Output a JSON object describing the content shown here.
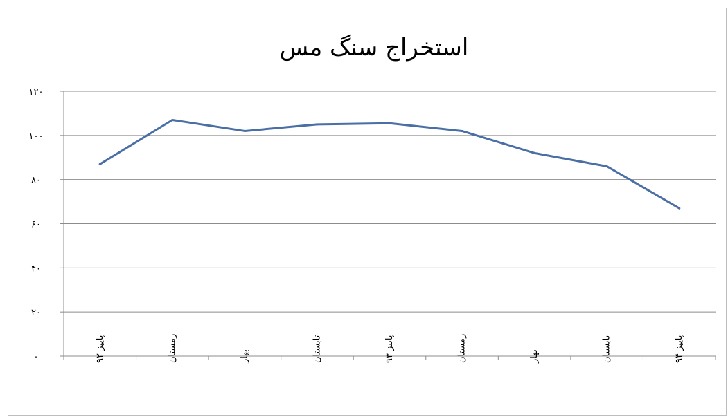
{
  "chart_data": {
    "type": "line",
    "title": "استخراج سنگ مس",
    "categories": [
      "پاییز ۹۲",
      "زمستان",
      "بهار",
      "تابستان",
      "پاییز ۹۳",
      "زمستان",
      "بهار",
      "تابستان",
      "پاییز ۹۴"
    ],
    "series": [
      {
        "values": [
          87,
          107,
          102,
          105,
          105.5,
          102,
          92,
          86,
          67
        ],
        "color": "#4a6fa5"
      }
    ],
    "y_ticks": [
      "۰",
      "۲۰",
      "۴۰",
      "۶۰",
      "۸۰",
      "۱۰۰",
      "۱۲۰"
    ],
    "ylim": [
      0,
      120
    ],
    "grid": true,
    "legend": "none"
  }
}
